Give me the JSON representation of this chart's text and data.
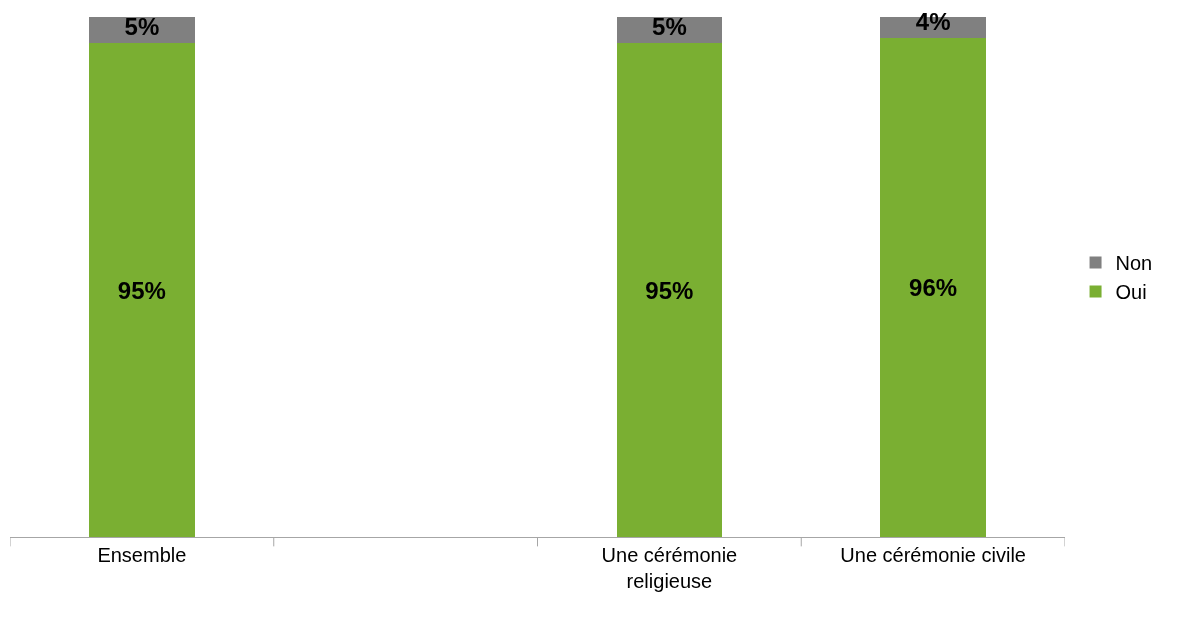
{
  "chart_data": {
    "type": "bar",
    "stacked": true,
    "categories": [
      "Ensemble",
      null,
      "Une cérémonie religieuse",
      "Une cérémonie civile"
    ],
    "series": [
      {
        "name": "Oui",
        "color": "#7aaf32",
        "values": [
          95,
          null,
          95,
          96
        ],
        "value_labels": [
          "95%",
          null,
          "95%",
          "96%"
        ]
      },
      {
        "name": "Non",
        "color": "#808080",
        "values": [
          5,
          null,
          5,
          4
        ],
        "value_labels": [
          "5%",
          null,
          "5%",
          "4%"
        ]
      }
    ],
    "ylim": [
      0,
      100
    ],
    "tick_labels": "x",
    "legend": "right"
  }
}
